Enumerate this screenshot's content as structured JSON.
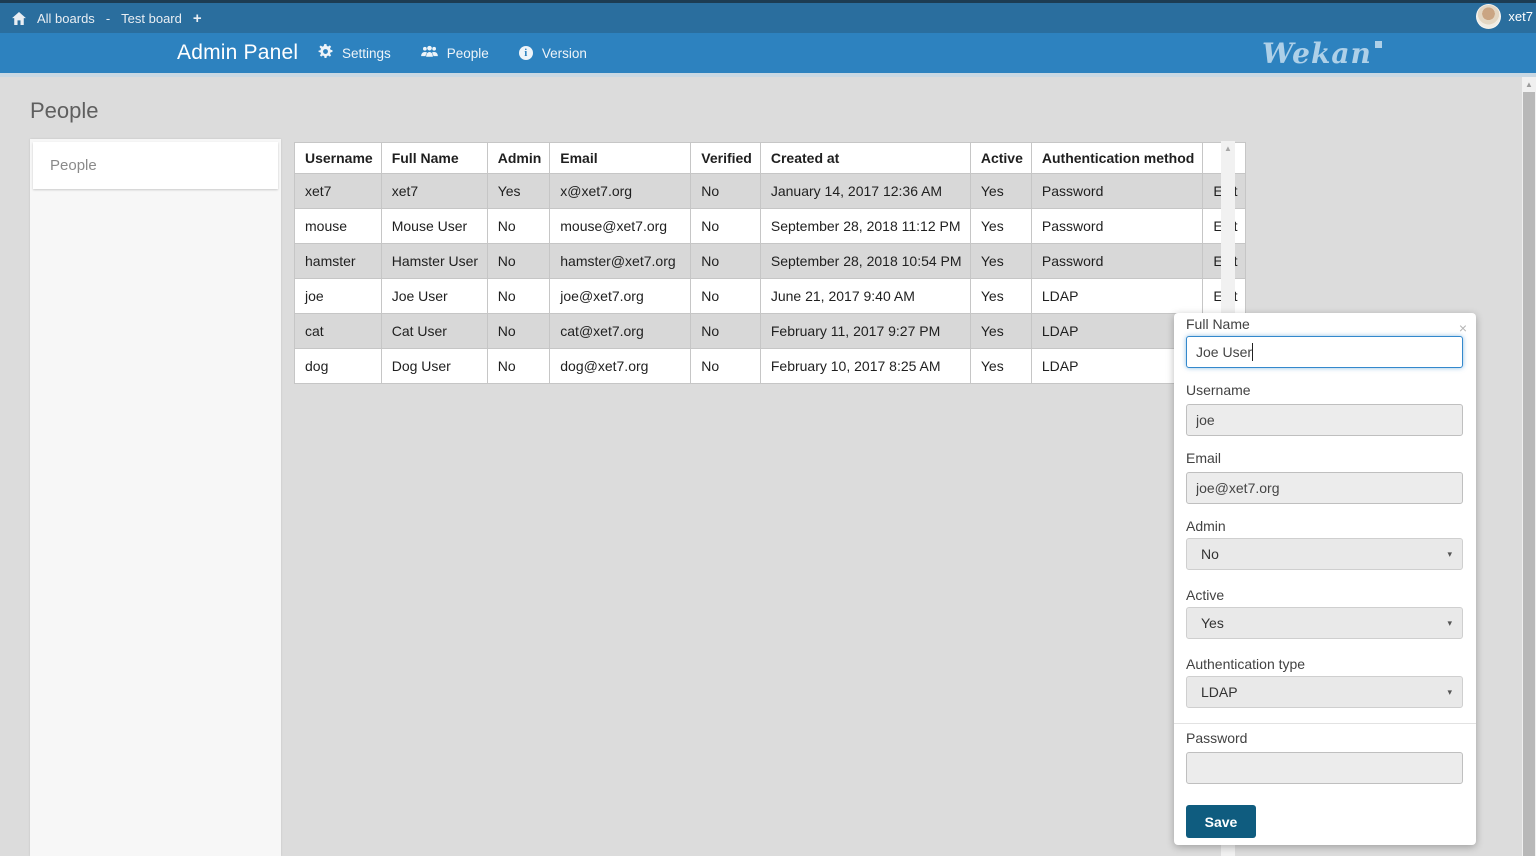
{
  "colors": {
    "topbar": "#2a6e9e",
    "header": "#2d82bf",
    "top_edge": "#1d3c52",
    "header_strip": "#c9d8e3",
    "page_bg": "#dcdcdc",
    "sidebar": "#f7f7f7",
    "stripe": "#d8d8d8",
    "table_border": "#c6c6c6",
    "save_button": "#0f5c7f",
    "focus": "#3388cc",
    "logo": "#aed0e8"
  },
  "icons": {
    "dropdown": "▾",
    "scroll_up": "▲",
    "close": "×",
    "plus": "+",
    "info_glyph": "i"
  },
  "topbar": {
    "breadcrumb": {
      "all_boards": "All boards",
      "separator": "-",
      "board": "Test board"
    },
    "user": "xet7"
  },
  "header": {
    "title": "Admin Panel",
    "nav": [
      {
        "label": "Settings"
      },
      {
        "label": "People"
      },
      {
        "label": "Version"
      }
    ],
    "logo": "Wekan"
  },
  "page": {
    "title": "People",
    "sidebar_items": [
      {
        "label": "People"
      }
    ]
  },
  "table": {
    "headers": [
      "Username",
      "Full Name",
      "Admin",
      "Email",
      "Verified",
      "Created at",
      "Active",
      "Authentication method",
      ""
    ],
    "edit_label": "Edit",
    "rows": [
      [
        "xet7",
        "xet7",
        "Yes",
        "x@xet7.org",
        "No",
        "January 14, 2017 12:36 AM",
        "Yes",
        "Password"
      ],
      [
        "mouse",
        "Mouse User",
        "No",
        "mouse@xet7.org",
        "No",
        "September 28, 2018 11:12 PM",
        "Yes",
        "Password"
      ],
      [
        "hamster",
        "Hamster User",
        "No",
        "hamster@xet7.org",
        "No",
        "September 28, 2018 10:54 PM",
        "Yes",
        "Password"
      ],
      [
        "joe",
        "Joe User",
        "No",
        "joe@xet7.org",
        "No",
        "June 21, 2017 9:40 AM",
        "Yes",
        "LDAP"
      ],
      [
        "cat",
        "Cat User",
        "No",
        "cat@xet7.org",
        "No",
        "February 11, 2017 9:27 PM",
        "Yes",
        "LDAP"
      ],
      [
        "dog",
        "Dog User",
        "No",
        "dog@xet7.org",
        "No",
        "February 10, 2017 8:25 AM",
        "Yes",
        "LDAP"
      ]
    ]
  },
  "edit_panel": {
    "fields": {
      "full_name": {
        "label": "Full Name",
        "value": "Joe User"
      },
      "username": {
        "label": "Username",
        "value": "joe"
      },
      "email": {
        "label": "Email",
        "value": "joe@xet7.org"
      },
      "admin": {
        "label": "Admin",
        "value": "No"
      },
      "active": {
        "label": "Active",
        "value": "Yes"
      },
      "auth_type": {
        "label": "Authentication type",
        "value": "LDAP"
      },
      "password": {
        "label": "Password",
        "value": ""
      }
    },
    "save_label": "Save"
  }
}
